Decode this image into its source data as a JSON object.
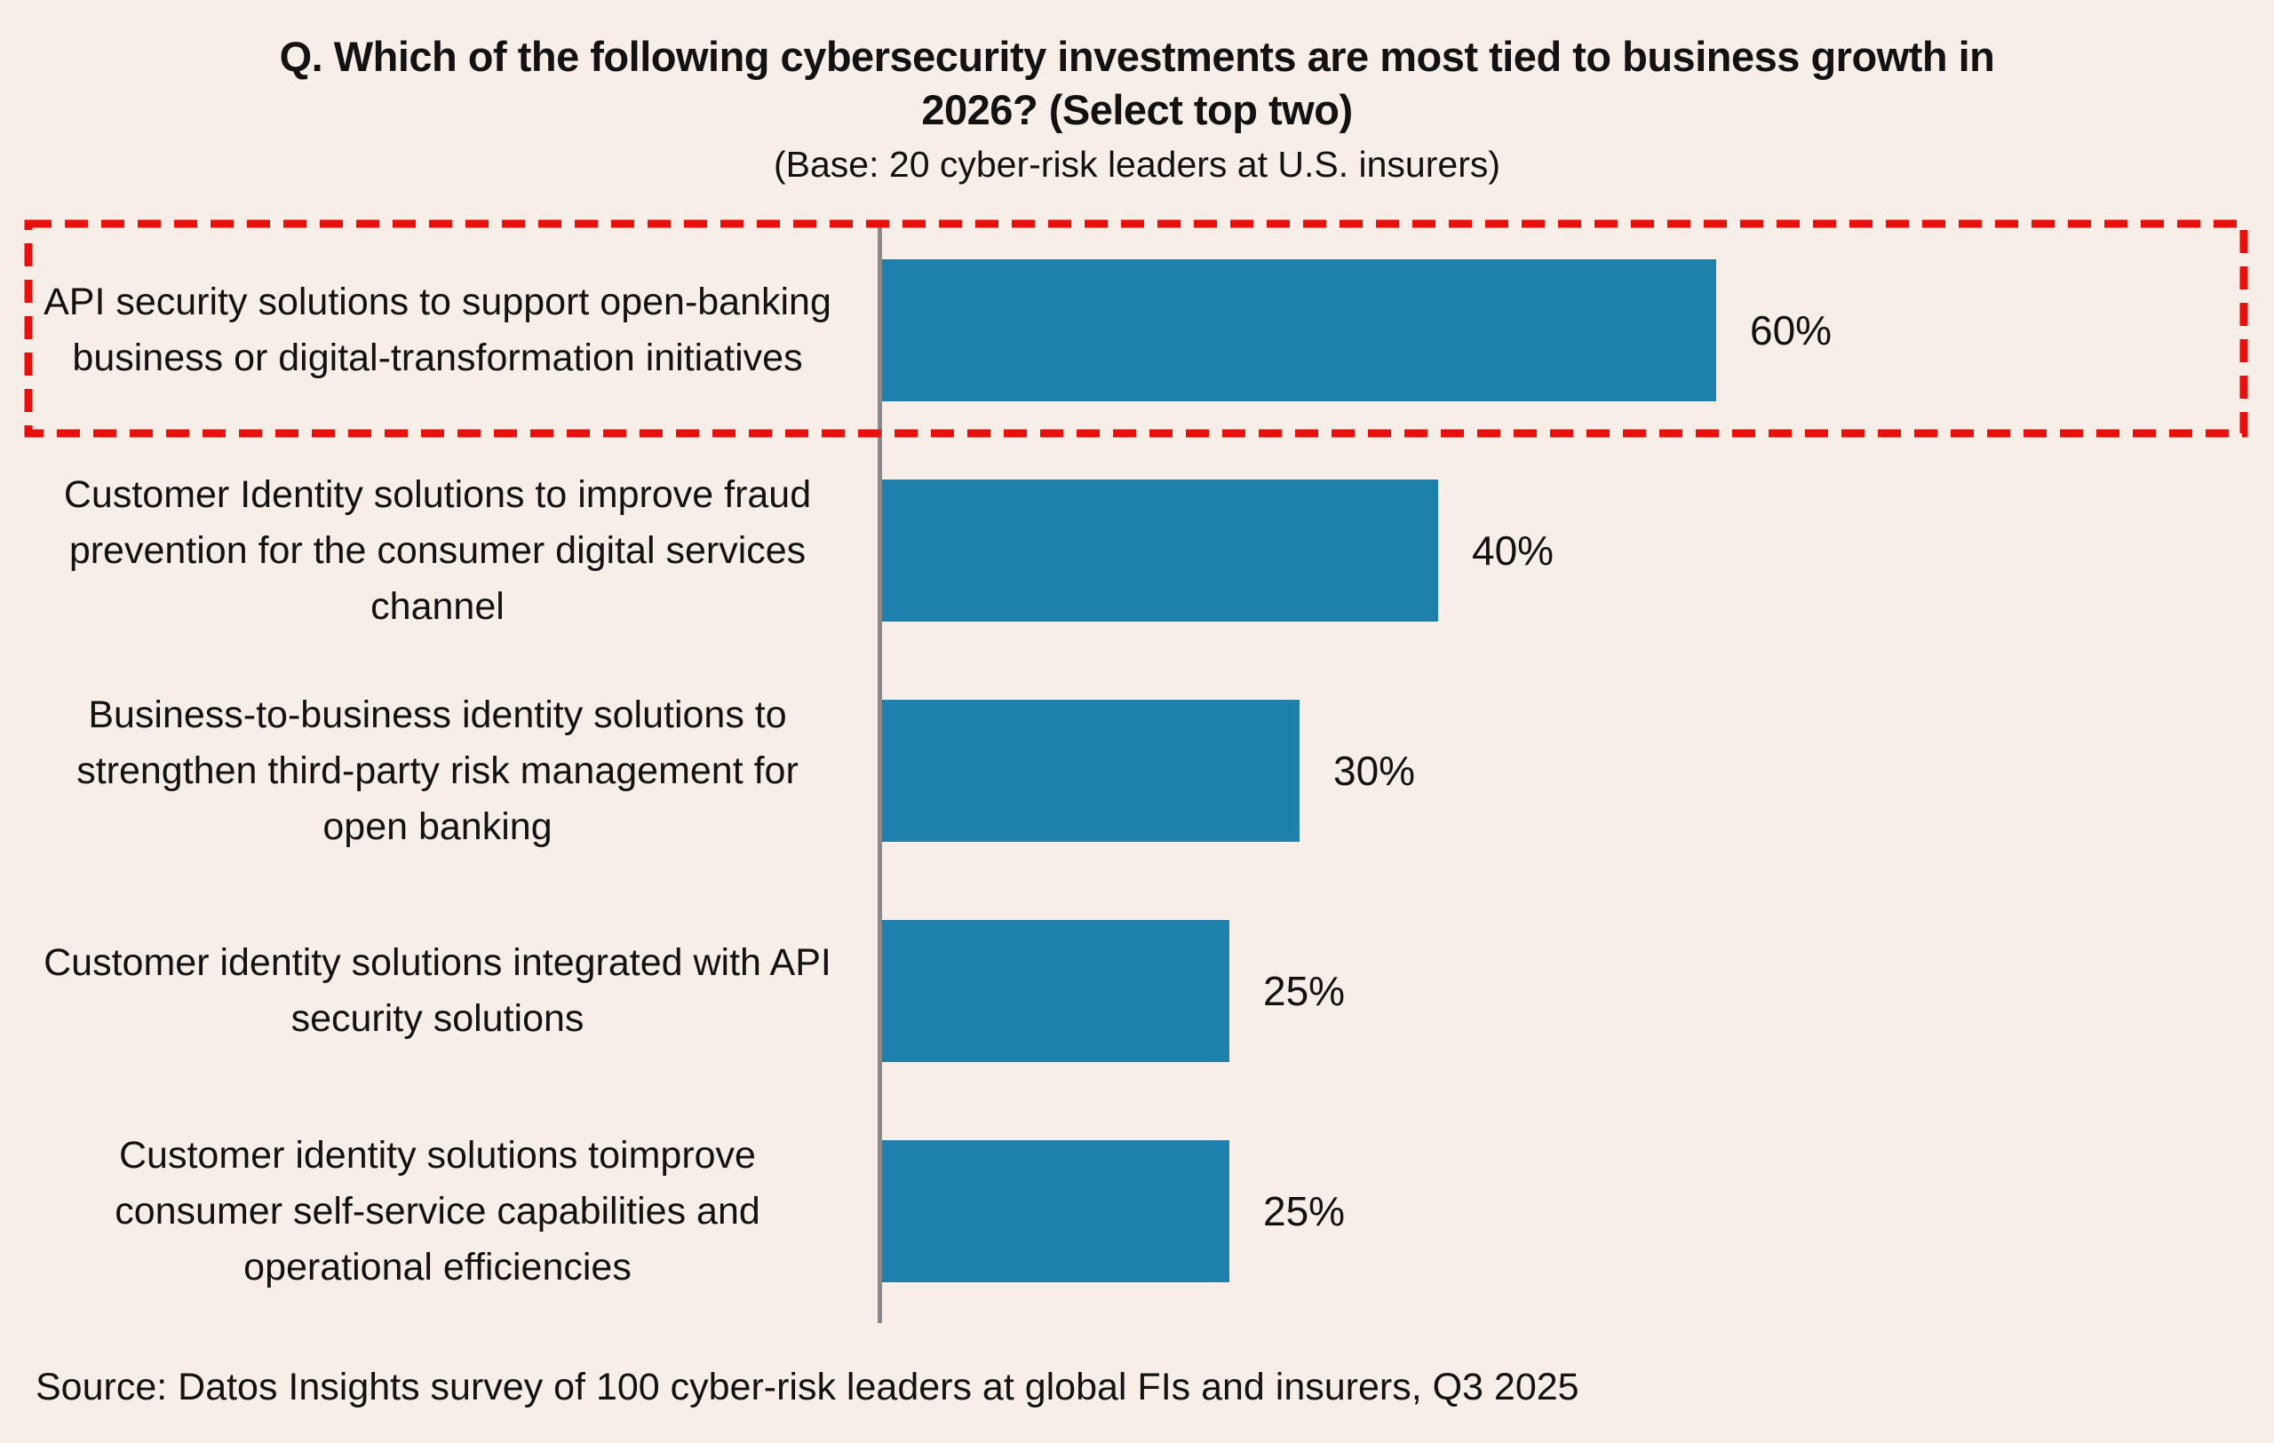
{
  "title": "Q. Which of the following cybersecurity investments are most tied to business growth in 2026? (Select top two)",
  "subtitle": "(Base: 20 cyber-risk leaders at U.S. insurers)",
  "source": "Source: Datos Insights survey of 100 cyber-risk leaders at global FIs and insurers, Q3 2025",
  "colors": {
    "background": "#F7EFE7",
    "bar": "#1E81AC",
    "highlight_border": "#E8100C",
    "axis": "#8A8A8A",
    "text": "#121212"
  },
  "chart_data": {
    "type": "bar",
    "orientation": "horizontal",
    "unit": "%",
    "xlim": [
      0,
      100
    ],
    "grid": false,
    "legend": false,
    "highlighted_category_index": 0,
    "categories": [
      "API security solutions to support open-banking business or digital-transformation initiatives",
      "Customer Identity solutions to improve fraud prevention for the consumer digital services channel",
      "Business-to-business identity solutions to strengthen third-party risk management for open banking",
      "Customer identity solutions integrated with API security solutions",
      "Customer identity solutions toimprove consumer self-service capabilities and operational efficiencies"
    ],
    "values": [
      60,
      40,
      30,
      25,
      25
    ],
    "value_labels": [
      "60%",
      "40%",
      "30%",
      "25%",
      "25%"
    ]
  }
}
